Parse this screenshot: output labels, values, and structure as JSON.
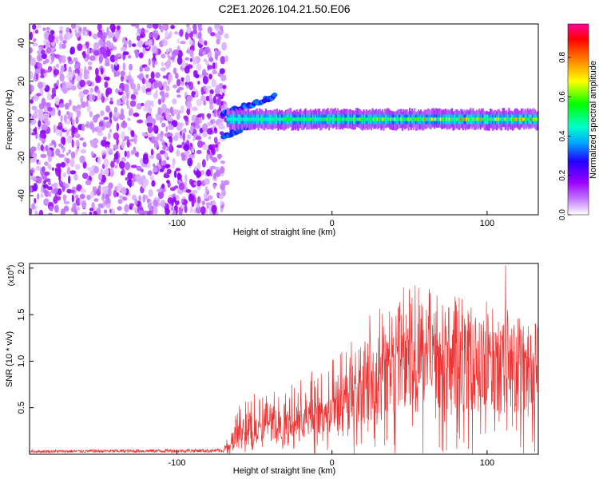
{
  "title": "C2E1.2026.104.21.50.E06",
  "chart_data": [
    {
      "type": "heatmap",
      "title": "C2E1.2026.104.21.50.E06",
      "xlabel": "Height of straight line (km)",
      "ylabel": "Frequency (Hz)",
      "xlim": [
        -195,
        133
      ],
      "ylim": [
        -50,
        50
      ],
      "xticks": [
        -100,
        0,
        100
      ],
      "xtick_labels": [
        "-100",
        "0",
        "100"
      ],
      "yticks": [
        -40,
        -20,
        0,
        20,
        40
      ],
      "ytick_labels": [
        "-40",
        "-20",
        "0",
        "20",
        "40"
      ],
      "colorbar": {
        "label": "Normalized spectral amplitude",
        "range": [
          0,
          0.97
        ],
        "ticks": [
          0.0,
          0.2,
          0.4,
          0.6,
          0.8
        ],
        "tick_labels": [
          "0.0",
          "0.2",
          "0.4",
          "0.6",
          "0.8"
        ],
        "colormap": [
          "#ffffff",
          "#9a00ff",
          "#2200ff",
          "#00aaff",
          "#00ffcc",
          "#00ff00",
          "#ffff00",
          "#ff7700",
          "#ff0000",
          "#ff0099"
        ]
      },
      "regions": [
        {
          "name": "noise",
          "x_range": [
            -195,
            -68
          ],
          "freq_range": [
            -50,
            50
          ],
          "amplitude": 0.08
        },
        {
          "name": "signal-line",
          "x_range": [
            -68,
            133
          ],
          "freq": 0,
          "amplitude_range": [
            0.3,
            0.95
          ]
        },
        {
          "name": "upper-branch",
          "x_from": [
            -70,
            3
          ],
          "x_to": [
            -37,
            12
          ],
          "amplitude": 0.3
        },
        {
          "name": "lower-branch",
          "x_from": [
            -70,
            -9
          ],
          "x_to": [
            -45,
            0
          ],
          "amplitude": 0.3
        }
      ]
    },
    {
      "type": "line",
      "xlabel": "Height of straight line (km)",
      "ylabel": "SNR (10 * v/v)",
      "y_scale_label": "(x10",
      "y_scale_exp": "4",
      "y_scale_close": ")",
      "xlim": [
        -195,
        133
      ],
      "ylim": [
        0,
        2.05
      ],
      "xticks": [
        -100,
        0,
        100
      ],
      "xtick_labels": [
        "-100",
        "0",
        "100"
      ],
      "yticks": [
        0.5,
        1.0,
        1.5,
        2.0
      ],
      "ytick_labels": [
        "0.5",
        "1.0",
        "1.5",
        "2.0"
      ],
      "series": [
        {
          "name": "SNR",
          "color": "#ee3333",
          "envelope": {
            "x": [
              -195,
              -70,
              -60,
              -50,
              -40,
              -30,
              -20,
              -10,
              0,
              10,
              20,
              30,
              40,
              50,
              60,
              70,
              80,
              90,
              100,
              110,
              120,
              133
            ],
            "mean": [
              0.03,
              0.04,
              0.22,
              0.28,
              0.33,
              0.36,
              0.42,
              0.48,
              0.55,
              0.65,
              0.78,
              0.92,
              1.05,
              1.12,
              1.15,
              1.16,
              1.13,
              1.1,
              1.1,
              1.08,
              1.05,
              1.0
            ],
            "peak": [
              0.06,
              0.07,
              0.55,
              0.65,
              0.7,
              0.75,
              0.82,
              0.95,
              1.05,
              1.25,
              1.45,
              1.6,
              1.78,
              1.85,
              1.85,
              1.75,
              1.72,
              1.7,
              1.65,
              1.6,
              1.55,
              1.5
            ]
          },
          "max_spike": {
            "x": 112,
            "value": 2.03
          }
        }
      ]
    }
  ]
}
